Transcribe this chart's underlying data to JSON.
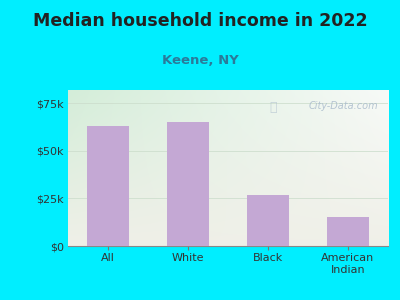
{
  "title": "Median household income in 2022",
  "subtitle": "Keene, NY",
  "categories": [
    "All",
    "White",
    "Black",
    "American\nIndian"
  ],
  "values": [
    63000,
    65000,
    27000,
    15000
  ],
  "bar_color": "#c4a8d4",
  "background_outer": "#00eeff",
  "grad_color_topleft": "#d4edda",
  "grad_color_right": "#f0f0e8",
  "title_color": "#222222",
  "subtitle_color": "#2a7a9a",
  "tick_label_color": "#333333",
  "yticks": [
    0,
    25000,
    50000,
    75000
  ],
  "ylim": [
    0,
    82000
  ],
  "title_fontsize": 12.5,
  "subtitle_fontsize": 9.5,
  "tick_fontsize": 8,
  "watermark_text": "City-Data.com",
  "watermark_color": "#aabbcc"
}
